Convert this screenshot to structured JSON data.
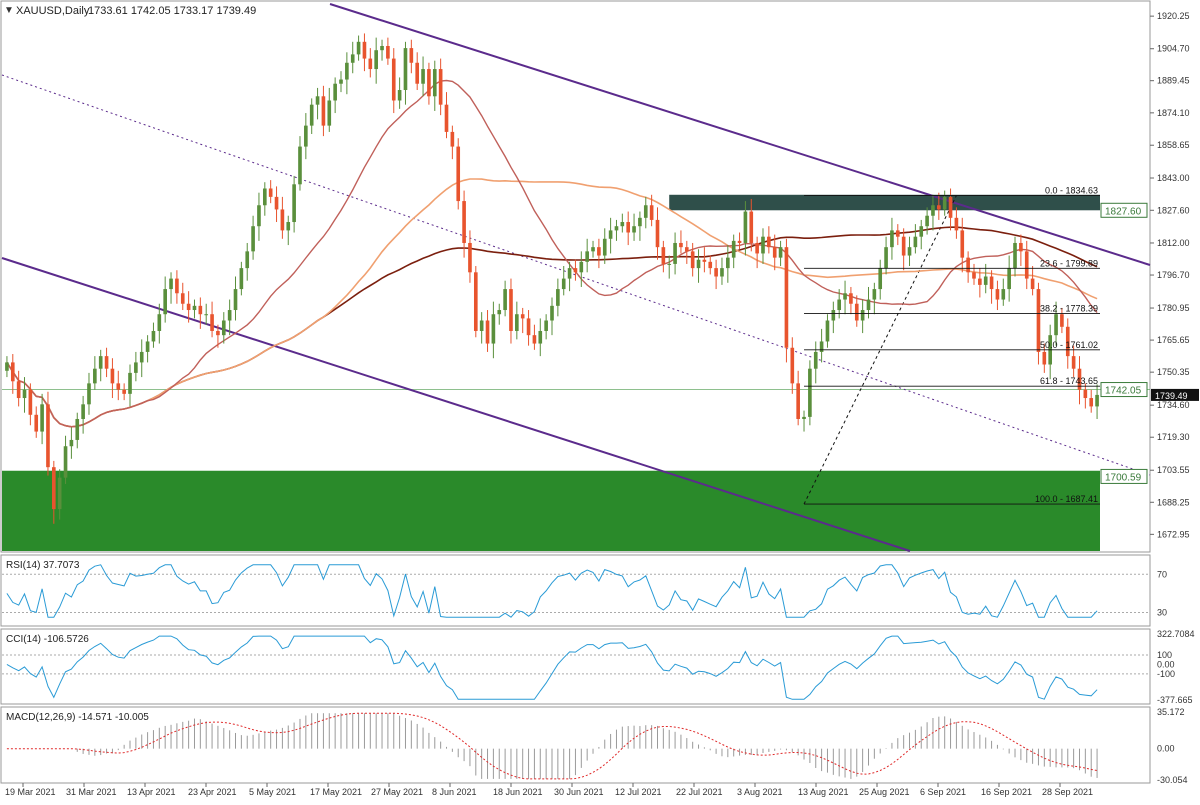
{
  "header": {
    "symbol_line": "XAUUSD,Daily",
    "ohlc_line": "1733.61 1742.05 1733.17 1739.49"
  },
  "colors": {
    "bull": "#5a8f3c",
    "bear": "#e8542e",
    "channel": "#5b2b8c",
    "sma200": "#7b1f0e",
    "ma_mid": "#f0a070",
    "ma_short": "#c0605a",
    "zone_supply": "#2f4f4a",
    "zone_demand": "#2a8a2a",
    "indicator_line": "#2a9bd6",
    "macd_signal": "#e02a2a",
    "grid_label": "#333333"
  },
  "chart_data": [
    {
      "type": "candlestick",
      "title": "XAUUSD,Daily",
      "ohlc_last": {
        "open": 1733.61,
        "high": 1742.05,
        "low": 1733.17,
        "close": 1739.49
      },
      "price_ticks": [
        1920.25,
        1904.7,
        1889.45,
        1874.1,
        1858.65,
        1843.0,
        1827.6,
        1812.0,
        1796.7,
        1780.95,
        1765.65,
        1750.35,
        1734.6,
        1719.3,
        1703.55,
        1688.25,
        1672.95
      ],
      "ylim": [
        1665,
        1927
      ],
      "date_labels": [
        "19 Mar 2021",
        "31 Mar 2021",
        "13 Apr 2021",
        "23 Apr 2021",
        "5 May 2021",
        "17 May 2021",
        "27 May 2021",
        "8 Jun 2021",
        "18 Jun 2021",
        "30 Jun 2021",
        "12 Jul 2021",
        "22 Jul 2021",
        "3 Aug 2021",
        "13 Aug 2021",
        "25 Aug 2021",
        "6 Sep 2021",
        "16 Sep 2021",
        "28 Sep 2021"
      ],
      "price_labels": [
        {
          "text": "1827.60",
          "value": 1827.6,
          "style": "box"
        },
        {
          "text": "1742.05",
          "value": 1742.05,
          "style": "box"
        },
        {
          "text": "1739.49",
          "value": 1739.49,
          "style": "current"
        },
        {
          "text": "1700.59",
          "value": 1700.59,
          "style": "box"
        }
      ],
      "fibonacci": [
        {
          "label": "0.0 - 1834.63",
          "value": 1834.63
        },
        {
          "label": "23.6 - 1799.89",
          "value": 1799.89
        },
        {
          "label": "38.2 - 1778.39",
          "value": 1778.39
        },
        {
          "label": "50.0 - 1761.02",
          "value": 1761.02
        },
        {
          "label": "61.8 - 1743.65",
          "value": 1743.65
        },
        {
          "label": "100.0 - 1687.41",
          "value": 1687.41
        }
      ],
      "zones": [
        {
          "name": "supply",
          "from": 1827.6,
          "to": 1835.0
        },
        {
          "name": "demand",
          "from": 1672.95,
          "to": 1703.3
        }
      ],
      "closes": [
        1755,
        1746,
        1738,
        1742,
        1730,
        1722,
        1735,
        1705,
        1685,
        1700,
        1715,
        1718,
        1728,
        1735,
        1745,
        1752,
        1758,
        1752,
        1745,
        1742,
        1740,
        1750,
        1755,
        1760,
        1765,
        1770,
        1778,
        1790,
        1795,
        1788,
        1783,
        1780,
        1782,
        1778,
        1778,
        1770,
        1768,
        1775,
        1780,
        1790,
        1800,
        1808,
        1820,
        1830,
        1838,
        1834,
        1828,
        1818,
        1822,
        1840,
        1858,
        1868,
        1878,
        1882,
        1868,
        1880,
        1888,
        1890,
        1898,
        1902,
        1908,
        1900,
        1895,
        1904,
        1906,
        1900,
        1880,
        1885,
        1905,
        1898,
        1888,
        1895,
        1882,
        1895,
        1878,
        1865,
        1858,
        1832,
        1812,
        1798,
        1770,
        1775,
        1764,
        1778,
        1780,
        1790,
        1770,
        1778,
        1776,
        1768,
        1764,
        1770,
        1775,
        1782,
        1790,
        1795,
        1800,
        1798,
        1803,
        1808,
        1810,
        1806,
        1814,
        1818,
        1820,
        1822,
        1817,
        1820,
        1824,
        1830,
        1823,
        1810,
        1802,
        1802,
        1812,
        1810,
        1808,
        1800,
        1804,
        1803,
        1800,
        1796,
        1800,
        1805,
        1813,
        1812,
        1827,
        1812,
        1807,
        1815,
        1810,
        1805,
        1810,
        1762,
        1745,
        1728,
        1729,
        1752,
        1760,
        1765,
        1775,
        1780,
        1785,
        1788,
        1783,
        1775,
        1780,
        1785,
        1790,
        1800,
        1810,
        1818,
        1815,
        1806,
        1810,
        1815,
        1820,
        1825,
        1830,
        1828,
        1834,
        1824,
        1818,
        1805,
        1798,
        1795,
        1792,
        1796,
        1790,
        1785,
        1790,
        1800,
        1812,
        1808,
        1795,
        1790,
        1760,
        1754,
        1768,
        1778,
        1772,
        1758,
        1752,
        1742,
        1738,
        1734,
        1739.49
      ]
    },
    {
      "type": "line",
      "name_text": "RSI(14) 37.7073",
      "ylim": [
        20,
        85
      ],
      "levels": [
        70,
        30
      ],
      "ticks": [
        "70",
        "30"
      ]
    },
    {
      "type": "line",
      "name_text": "CCI(14) -106.5726",
      "ylim": [
        -377.665,
        322.7084
      ],
      "levels": [
        100,
        0,
        -100
      ],
      "ticks": [
        "322.7084",
        "100",
        "0.00",
        "-100",
        "-377.665"
      ]
    },
    {
      "type": "bar",
      "name_text": "MACD(12,26,9) -14.571 -10.005",
      "ylim": [
        -30.054,
        35.172
      ],
      "ticks": [
        "35.172",
        "0.00",
        "-30.054"
      ]
    }
  ]
}
